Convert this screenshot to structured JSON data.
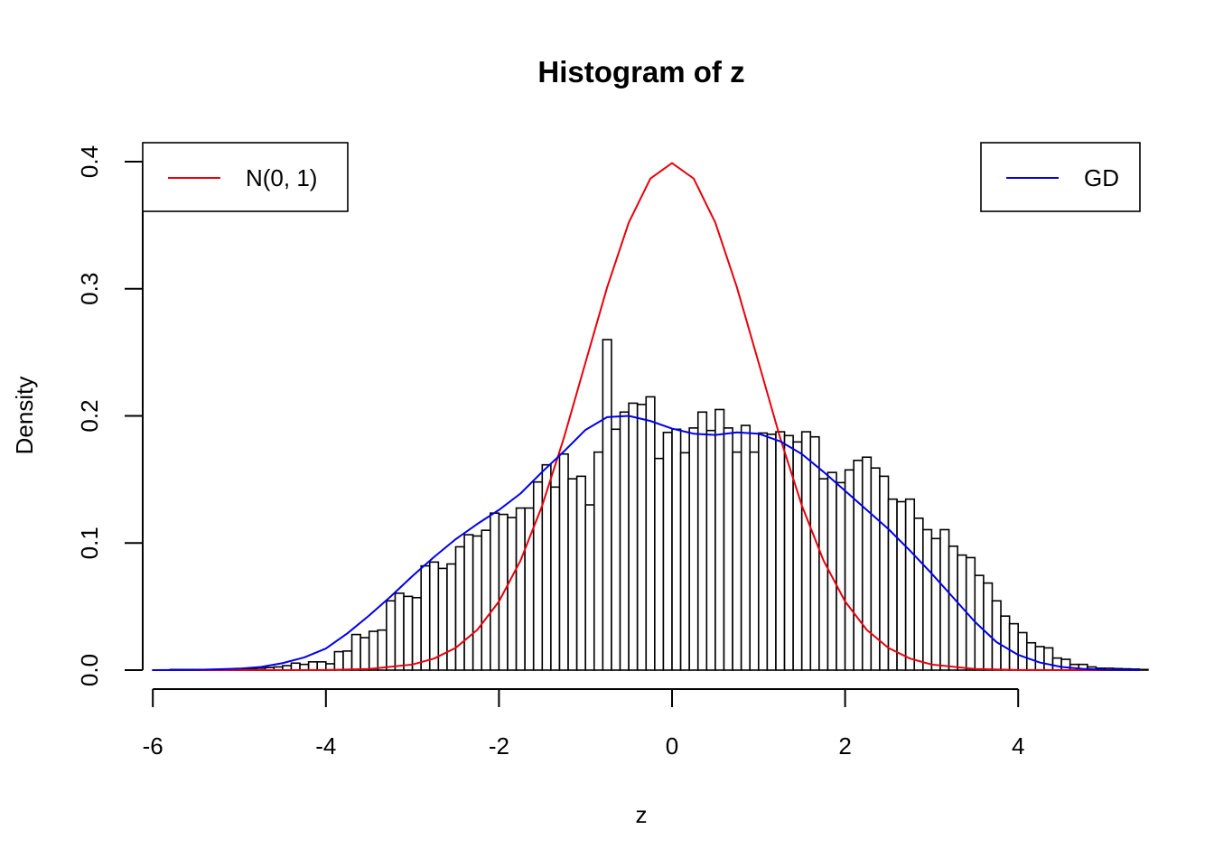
{
  "chart_data": {
    "type": "bar",
    "title": "Histogram of z",
    "xlabel": "z",
    "ylabel": "Density",
    "xlim": [
      -6.0,
      5.4
    ],
    "ylim": [
      0,
      0.4
    ],
    "x_ticks": [
      -6,
      -4,
      -2,
      0,
      2,
      4
    ],
    "x_tick_labels": [
      "-6",
      "-4",
      "-2",
      "0",
      "2",
      "4"
    ],
    "y_ticks": [
      0,
      0.1,
      0.2,
      0.3,
      0.4
    ],
    "y_tick_labels": [
      "0.0",
      "0.1",
      "0.2",
      "0.3",
      "0.4"
    ],
    "grid": false,
    "histogram": {
      "bin_start": -5.8,
      "bin_width": 0.1,
      "densities": [
        0.0005,
        0.0005,
        0.0005,
        0.0005,
        0.0005,
        0.0005,
        0.0005,
        0.0008,
        0.001,
        0.0012,
        0.0015,
        0.002,
        0.0025,
        0.0035,
        0.0055,
        0.0045,
        0.0065,
        0.0065,
        0.005,
        0.0145,
        0.015,
        0.028,
        0.0255,
        0.0305,
        0.0315,
        0.0545,
        0.0605,
        0.058,
        0.057,
        0.082,
        0.085,
        0.08,
        0.0835,
        0.097,
        0.1065,
        0.1055,
        0.11,
        0.1235,
        0.1225,
        0.12,
        0.1275,
        0.1275,
        0.148,
        0.1615,
        0.144,
        0.17,
        0.1505,
        0.1525,
        0.13,
        0.1715,
        0.26,
        0.1895,
        0.203,
        0.21,
        0.209,
        0.215,
        0.1665,
        0.187,
        0.1895,
        0.171,
        0.1905,
        0.203,
        0.1885,
        0.205,
        0.1905,
        0.1715,
        0.1925,
        0.1715,
        0.1865,
        0.1855,
        0.1875,
        0.1845,
        0.1795,
        0.1875,
        0.1835,
        0.1505,
        0.1555,
        0.1475,
        0.1575,
        0.165,
        0.1675,
        0.159,
        0.1525,
        0.1345,
        0.1325,
        0.1345,
        0.1195,
        0.1105,
        0.1035,
        0.1105,
        0.0975,
        0.0905,
        0.0885,
        0.0745,
        0.0685,
        0.0545,
        0.0425,
        0.0365,
        0.0295,
        0.0215,
        0.0185,
        0.0175,
        0.0095,
        0.0085,
        0.0045,
        0.0045,
        0.0025,
        0.0015,
        0.0015,
        0.0012,
        0.001,
        0.0008,
        0.0005
      ]
    },
    "series": [
      {
        "name": "N(0, 1)",
        "color": "#e8000b",
        "kind": "density",
        "x": [
          -6,
          -5,
          -4.5,
          -4,
          -3.5,
          -3,
          -2.75,
          -2.5,
          -2.25,
          -2,
          -1.75,
          -1.5,
          -1.25,
          -1,
          -0.75,
          -0.5,
          -0.25,
          0,
          0.25,
          0.5,
          0.75,
          1,
          1.25,
          1.5,
          1.75,
          2,
          2.25,
          2.5,
          2.75,
          3,
          3.5,
          4,
          4.5,
          5,
          5.4
        ],
        "values": [
          0,
          0,
          0,
          0.0001,
          0.0009,
          0.0044,
          0.0091,
          0.0175,
          0.0317,
          0.054,
          0.0863,
          0.1295,
          0.1826,
          0.242,
          0.3011,
          0.3521,
          0.3867,
          0.3989,
          0.3867,
          0.3521,
          0.3011,
          0.242,
          0.1826,
          0.1295,
          0.0863,
          0.054,
          0.0317,
          0.0175,
          0.0091,
          0.0044,
          0.0009,
          0.0001,
          0,
          0,
          0
        ]
      },
      {
        "name": "GD",
        "color": "#0000ee",
        "kind": "density",
        "x": [
          -6,
          -5.5,
          -5,
          -4.75,
          -4.5,
          -4.25,
          -4,
          -3.75,
          -3.5,
          -3.25,
          -3,
          -2.75,
          -2.5,
          -2.25,
          -2,
          -1.75,
          -1.5,
          -1.25,
          -1,
          -0.75,
          -0.5,
          -0.25,
          0,
          0.25,
          0.5,
          0.75,
          1,
          1.25,
          1.5,
          1.75,
          2,
          2.25,
          2.5,
          2.75,
          3,
          3.25,
          3.5,
          3.75,
          4,
          4.25,
          4.5,
          4.75,
          5,
          5.4
        ],
        "values": [
          0,
          0.0002,
          0.0012,
          0.0025,
          0.0055,
          0.01,
          0.017,
          0.029,
          0.043,
          0.058,
          0.074,
          0.089,
          0.103,
          0.115,
          0.126,
          0.139,
          0.156,
          0.172,
          0.189,
          0.199,
          0.2,
          0.196,
          0.19,
          0.186,
          0.185,
          0.187,
          0.186,
          0.18,
          0.17,
          0.156,
          0.141,
          0.126,
          0.111,
          0.094,
          0.076,
          0.057,
          0.038,
          0.022,
          0.012,
          0.006,
          0.0025,
          0.001,
          0.0003,
          0
        ]
      }
    ],
    "legends": [
      {
        "label": "N(0, 1)",
        "color": "#e8000b",
        "placement": "top-left"
      },
      {
        "label": "GD",
        "color": "#0000ee",
        "placement": "top-right"
      }
    ]
  }
}
